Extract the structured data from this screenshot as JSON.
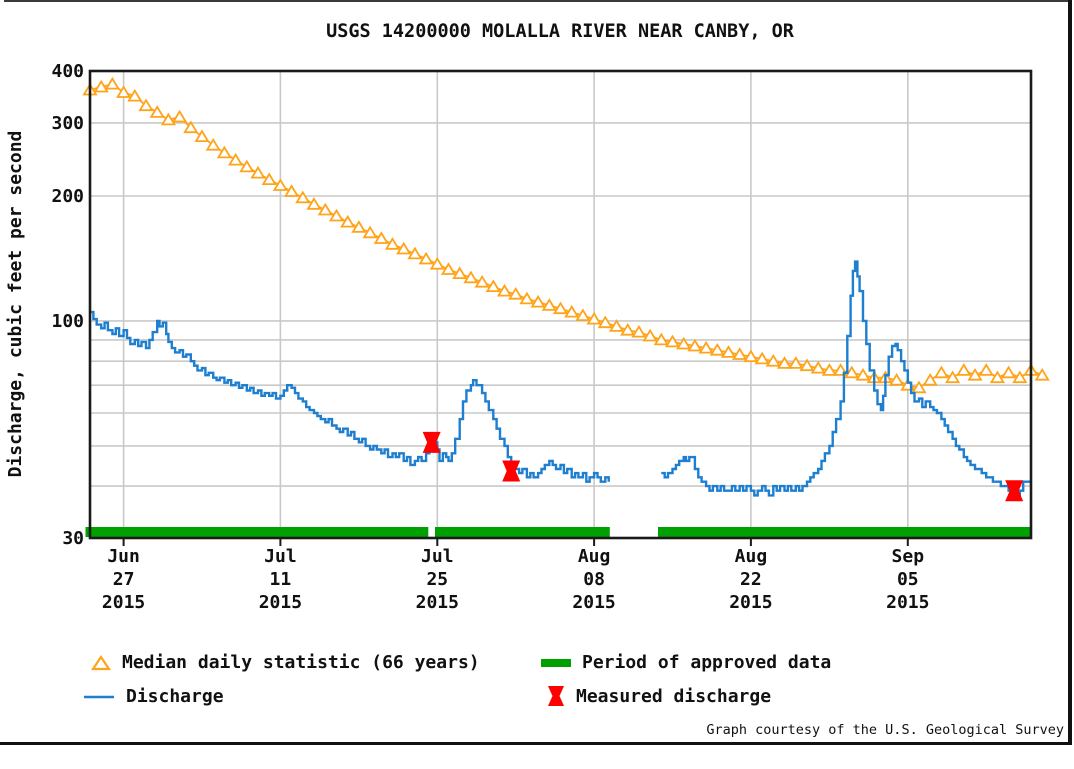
{
  "title": "USGS 14200000 MOLALLA RIVER NEAR CANBY, OR",
  "caption": "Graph courtesy of the U.S. Geological Survey",
  "colors": {
    "median": "#FFA319",
    "discharge": "#1E7FD0",
    "approved": "#00A000",
    "measured": "#FF0000",
    "grid": "#C9C9C9",
    "frame": "#1A1A1A",
    "text": "#111111"
  },
  "y_axis": {
    "label": "Discharge, cubic feet per second",
    "scale": "log",
    "min": 30,
    "max": 400,
    "tick_labels": [
      400,
      300,
      200,
      100,
      30
    ],
    "major_gridlines": [
      300,
      200,
      100
    ],
    "minor_gridlines": [
      90,
      80,
      70,
      60,
      50,
      40
    ]
  },
  "x_axis": {
    "start_day_date": "Jun 24 2015",
    "days_total": 84,
    "ticks": [
      {
        "day": 3,
        "line1": "Jun",
        "line2": "27",
        "line3": "2015"
      },
      {
        "day": 17,
        "line1": "Jul",
        "line2": "11",
        "line3": "2015"
      },
      {
        "day": 31,
        "line1": "Jul",
        "line2": "25",
        "line3": "2015"
      },
      {
        "day": 45,
        "line1": "Aug",
        "line2": "08",
        "line3": "2015"
      },
      {
        "day": 59,
        "line1": "Aug",
        "line2": "22",
        "line3": "2015"
      },
      {
        "day": 73,
        "line1": "Sep",
        "line2": "05",
        "line3": "2015"
      }
    ]
  },
  "legend": {
    "median_label": "Median daily statistic (66 years)",
    "discharge_label": "Discharge",
    "approved_label": "Period of approved data",
    "measured_label": "Measured discharge"
  },
  "chart_data": {
    "type": "line",
    "x_unit": "days since Jun 24 2015",
    "y_unit": "cubic feet per second (log scale)",
    "median_daily_statistic": {
      "day0": 0,
      "values": [
        360,
        366,
        372,
        355,
        348,
        330,
        318,
        305,
        310,
        292,
        278,
        265,
        254,
        244,
        235,
        227,
        219,
        212,
        205,
        198,
        191,
        185,
        179,
        173,
        168,
        163,
        158,
        153,
        149,
        145,
        141,
        137,
        133,
        130,
        127,
        124,
        121,
        118,
        116,
        113,
        111,
        109,
        107,
        105,
        103,
        101,
        99,
        97,
        95,
        94,
        92,
        90,
        89,
        88,
        87,
        86,
        85,
        84,
        83,
        82,
        81,
        80,
        79,
        79,
        78,
        77,
        76,
        76,
        75,
        74,
        73,
        73,
        72,
        70,
        69,
        72,
        75,
        73,
        76,
        74,
        76,
        73,
        75,
        73,
        76,
        74
      ]
    },
    "discharge_segments": [
      [
        [
          0,
          105
        ],
        [
          0.3,
          101
        ],
        [
          0.6,
          98
        ],
        [
          1,
          96
        ],
        [
          1.3,
          99
        ],
        [
          1.6,
          95
        ],
        [
          2,
          93
        ],
        [
          2.3,
          96
        ],
        [
          2.6,
          92
        ],
        [
          3,
          95
        ],
        [
          3.3,
          91
        ],
        [
          3.6,
          88
        ],
        [
          4,
          90
        ],
        [
          4.3,
          87
        ],
        [
          4.6,
          89
        ],
        [
          5,
          86
        ],
        [
          5.3,
          90
        ],
        [
          5.6,
          94
        ],
        [
          6,
          100
        ],
        [
          6.2,
          97
        ],
        [
          6.5,
          99
        ],
        [
          6.8,
          93
        ],
        [
          7,
          89
        ],
        [
          7.3,
          86
        ],
        [
          7.6,
          84
        ],
        [
          8,
          85
        ],
        [
          8.3,
          82
        ],
        [
          8.6,
          83
        ],
        [
          9,
          80
        ],
        [
          9.3,
          78
        ],
        [
          9.6,
          76
        ],
        [
          10,
          77
        ],
        [
          10.3,
          74
        ],
        [
          10.6,
          75
        ],
        [
          11,
          73
        ],
        [
          11.3,
          72
        ],
        [
          11.6,
          73
        ],
        [
          12,
          71
        ],
        [
          12.3,
          72
        ],
        [
          12.6,
          70
        ],
        [
          13,
          71
        ],
        [
          13.3,
          69
        ],
        [
          13.6,
          70
        ],
        [
          14,
          68
        ],
        [
          14.3,
          69
        ],
        [
          14.6,
          67
        ],
        [
          15,
          68
        ],
        [
          15.3,
          66
        ],
        [
          15.6,
          67
        ],
        [
          16,
          66
        ],
        [
          16.3,
          67
        ],
        [
          16.6,
          65
        ],
        [
          17,
          66
        ],
        [
          17.3,
          68
        ],
        [
          17.6,
          70
        ],
        [
          18,
          69
        ],
        [
          18.3,
          67
        ],
        [
          18.6,
          65
        ],
        [
          19,
          64
        ],
        [
          19.3,
          62
        ],
        [
          19.6,
          61
        ],
        [
          20,
          60
        ],
        [
          20.3,
          59
        ],
        [
          20.6,
          58
        ],
        [
          21,
          57
        ],
        [
          21.3,
          58
        ],
        [
          21.6,
          56
        ],
        [
          22,
          55
        ],
        [
          22.3,
          54
        ],
        [
          22.6,
          55
        ],
        [
          23,
          53
        ],
        [
          23.3,
          54
        ],
        [
          23.6,
          52
        ],
        [
          24,
          51
        ],
        [
          24.3,
          52
        ],
        [
          24.6,
          50
        ],
        [
          25,
          49
        ],
        [
          25.3,
          50
        ],
        [
          25.6,
          49
        ],
        [
          26,
          48
        ],
        [
          26.3,
          49
        ],
        [
          26.6,
          47
        ],
        [
          27,
          48
        ],
        [
          27.3,
          47
        ],
        [
          27.6,
          48
        ],
        [
          28,
          46
        ],
        [
          28.3,
          47
        ],
        [
          28.6,
          45
        ],
        [
          29,
          46
        ],
        [
          29.3,
          47
        ],
        [
          29.6,
          46
        ],
        [
          30,
          48
        ],
        [
          30.3,
          50
        ],
        [
          30.6,
          51
        ],
        [
          31,
          49
        ],
        [
          31.2,
          46
        ],
        [
          31.5,
          48
        ],
        [
          31.8,
          47
        ],
        [
          32,
          46
        ],
        [
          32.3,
          48
        ],
        [
          32.6,
          52
        ],
        [
          33,
          58
        ],
        [
          33.3,
          64
        ],
        [
          33.6,
          68
        ],
        [
          34,
          70
        ],
        [
          34.2,
          72
        ],
        [
          34.5,
          70
        ],
        [
          35,
          67
        ],
        [
          35.3,
          64
        ],
        [
          35.6,
          61
        ],
        [
          36,
          58
        ],
        [
          36.3,
          55
        ],
        [
          36.6,
          52
        ],
        [
          37,
          50
        ],
        [
          37.3,
          47
        ],
        [
          37.6,
          45
        ],
        [
          38,
          44
        ],
        [
          38.3,
          43
        ],
        [
          38.6,
          44
        ],
        [
          39,
          42
        ],
        [
          39.3,
          43
        ],
        [
          39.6,
          42
        ],
        [
          40,
          43
        ],
        [
          40.3,
          44
        ],
        [
          40.6,
          45
        ],
        [
          41,
          46
        ],
        [
          41.3,
          45
        ],
        [
          41.6,
          44
        ],
        [
          42,
          45
        ],
        [
          42.3,
          43
        ],
        [
          42.6,
          44
        ],
        [
          43,
          42
        ],
        [
          43.3,
          43
        ],
        [
          43.6,
          42
        ],
        [
          44,
          43
        ],
        [
          44.3,
          41
        ],
        [
          44.6,
          42
        ],
        [
          45,
          43
        ],
        [
          45.3,
          42
        ],
        [
          45.6,
          41
        ],
        [
          46,
          42
        ],
        [
          46.3,
          41
        ]
      ],
      [
        [
          51,
          43
        ],
        [
          51.3,
          42
        ],
        [
          51.6,
          43
        ],
        [
          52,
          44
        ],
        [
          52.3,
          45
        ],
        [
          52.6,
          46
        ],
        [
          53,
          47
        ],
        [
          53.2,
          46
        ],
        [
          53.5,
          47
        ],
        [
          54,
          44
        ],
        [
          54.3,
          42
        ],
        [
          54.6,
          41
        ],
        [
          55,
          40
        ],
        [
          55.3,
          39
        ],
        [
          55.6,
          40
        ],
        [
          56,
          39
        ],
        [
          56.3,
          40
        ],
        [
          56.6,
          39
        ],
        [
          57,
          39
        ],
        [
          57.3,
          40
        ],
        [
          57.6,
          39
        ],
        [
          58,
          40
        ],
        [
          58.3,
          39
        ],
        [
          58.6,
          40
        ],
        [
          59,
          39
        ],
        [
          59.3,
          38
        ],
        [
          59.6,
          39
        ],
        [
          60,
          40
        ],
        [
          60.3,
          39
        ],
        [
          60.6,
          38
        ],
        [
          61,
          40
        ],
        [
          61.3,
          39
        ],
        [
          61.6,
          40
        ],
        [
          62,
          39
        ],
        [
          62.3,
          40
        ],
        [
          62.6,
          39
        ],
        [
          63,
          40
        ],
        [
          63.3,
          39
        ],
        [
          63.6,
          40
        ],
        [
          64,
          41
        ],
        [
          64.3,
          42
        ],
        [
          64.6,
          43
        ],
        [
          65,
          44
        ],
        [
          65.3,
          46
        ],
        [
          65.6,
          48
        ],
        [
          66,
          50
        ],
        [
          66.3,
          54
        ],
        [
          66.6,
          58
        ],
        [
          67,
          64
        ],
        [
          67.3,
          75
        ],
        [
          67.6,
          92
        ],
        [
          67.9,
          115
        ],
        [
          68.1,
          132
        ],
        [
          68.3,
          139
        ],
        [
          68.5,
          128
        ],
        [
          68.7,
          118
        ],
        [
          69,
          100
        ],
        [
          69.3,
          88
        ],
        [
          69.6,
          76
        ],
        [
          70,
          68
        ],
        [
          70.3,
          63
        ],
        [
          70.6,
          61
        ],
        [
          70.8,
          66
        ],
        [
          71,
          74
        ],
        [
          71.3,
          82
        ],
        [
          71.6,
          87
        ],
        [
          71.9,
          88
        ],
        [
          72.1,
          85
        ],
        [
          72.4,
          80
        ],
        [
          72.7,
          76
        ],
        [
          73,
          71
        ],
        [
          73.3,
          67
        ],
        [
          73.6,
          64
        ],
        [
          74,
          65
        ],
        [
          74.3,
          62
        ],
        [
          74.6,
          64
        ],
        [
          75,
          62
        ],
        [
          75.3,
          61
        ],
        [
          75.6,
          60
        ],
        [
          76,
          58
        ],
        [
          76.3,
          56
        ],
        [
          76.6,
          54
        ],
        [
          77,
          52
        ],
        [
          77.3,
          50
        ],
        [
          77.6,
          49
        ],
        [
          78,
          47
        ],
        [
          78.3,
          46
        ],
        [
          78.6,
          45
        ],
        [
          79,
          44
        ],
        [
          79.3,
          44
        ],
        [
          79.6,
          43
        ],
        [
          80,
          42
        ],
        [
          80.3,
          42
        ],
        [
          80.6,
          41
        ],
        [
          81,
          41
        ],
        [
          81.3,
          40
        ],
        [
          81.6,
          40
        ],
        [
          82,
          39
        ],
        [
          82.3,
          38
        ],
        [
          82.6,
          38
        ],
        [
          83,
          39
        ],
        [
          83.3,
          41
        ],
        [
          83.6,
          41
        ],
        [
          84,
          41
        ]
      ]
    ],
    "measured_discharge_points": [
      {
        "day": 30.5,
        "value": 51
      },
      {
        "day": 37.6,
        "value": 43.5
      },
      {
        "day": 82.5,
        "value": 39
      }
    ],
    "approved_period_segments": [
      {
        "from_day": -0.4,
        "to_day": 30.2
      },
      {
        "from_day": 30.8,
        "to_day": 46.4
      },
      {
        "from_day": 50.7,
        "to_day": 84
      }
    ]
  }
}
